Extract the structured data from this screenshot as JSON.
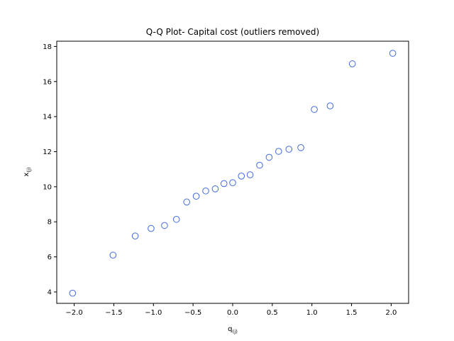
{
  "chart_data": {
    "type": "scatter",
    "title": "Q-Q Plot- Capital cost (outliers removed)",
    "xlabel": {
      "base": "q",
      "sub": "(j)"
    },
    "ylabel": {
      "base": "x",
      "sub": "(j)"
    },
    "xlim": [
      -2.22,
      2.22
    ],
    "ylim": [
      3.35,
      18.3
    ],
    "xticks": [
      -2.0,
      -1.5,
      -1.0,
      -0.5,
      0.0,
      0.5,
      1.0,
      1.5,
      2.0
    ],
    "xtick_labels": [
      "−2.0",
      "−1.5",
      "−1.0",
      "−0.5",
      "0.0",
      "0.5",
      "1.0",
      "1.5",
      "2.0"
    ],
    "yticks": [
      4,
      6,
      8,
      10,
      12,
      14,
      16,
      18
    ],
    "ytick_labels": [
      "4",
      "6",
      "8",
      "10",
      "12",
      "14",
      "16",
      "18"
    ],
    "grid": false,
    "marker": "hollow-circle",
    "marker_color": "#4169e1",
    "points": [
      {
        "x": -2.02,
        "y": 3.93
      },
      {
        "x": -1.51,
        "y": 6.1
      },
      {
        "x": -1.23,
        "y": 7.19
      },
      {
        "x": -1.03,
        "y": 7.62
      },
      {
        "x": -0.86,
        "y": 7.79
      },
      {
        "x": -0.71,
        "y": 8.14
      },
      {
        "x": -0.58,
        "y": 9.13
      },
      {
        "x": -0.46,
        "y": 9.46
      },
      {
        "x": -0.34,
        "y": 9.76
      },
      {
        "x": -0.22,
        "y": 9.88
      },
      {
        "x": -0.11,
        "y": 10.18
      },
      {
        "x": 0.0,
        "y": 10.23
      },
      {
        "x": 0.11,
        "y": 10.61
      },
      {
        "x": 0.22,
        "y": 10.68
      },
      {
        "x": 0.34,
        "y": 11.23
      },
      {
        "x": 0.46,
        "y": 11.68
      },
      {
        "x": 0.58,
        "y": 12.02
      },
      {
        "x": 0.71,
        "y": 12.14
      },
      {
        "x": 0.86,
        "y": 12.23
      },
      {
        "x": 1.03,
        "y": 14.41
      },
      {
        "x": 1.23,
        "y": 14.61
      },
      {
        "x": 1.51,
        "y": 17.01
      },
      {
        "x": 2.02,
        "y": 17.61
      }
    ]
  }
}
